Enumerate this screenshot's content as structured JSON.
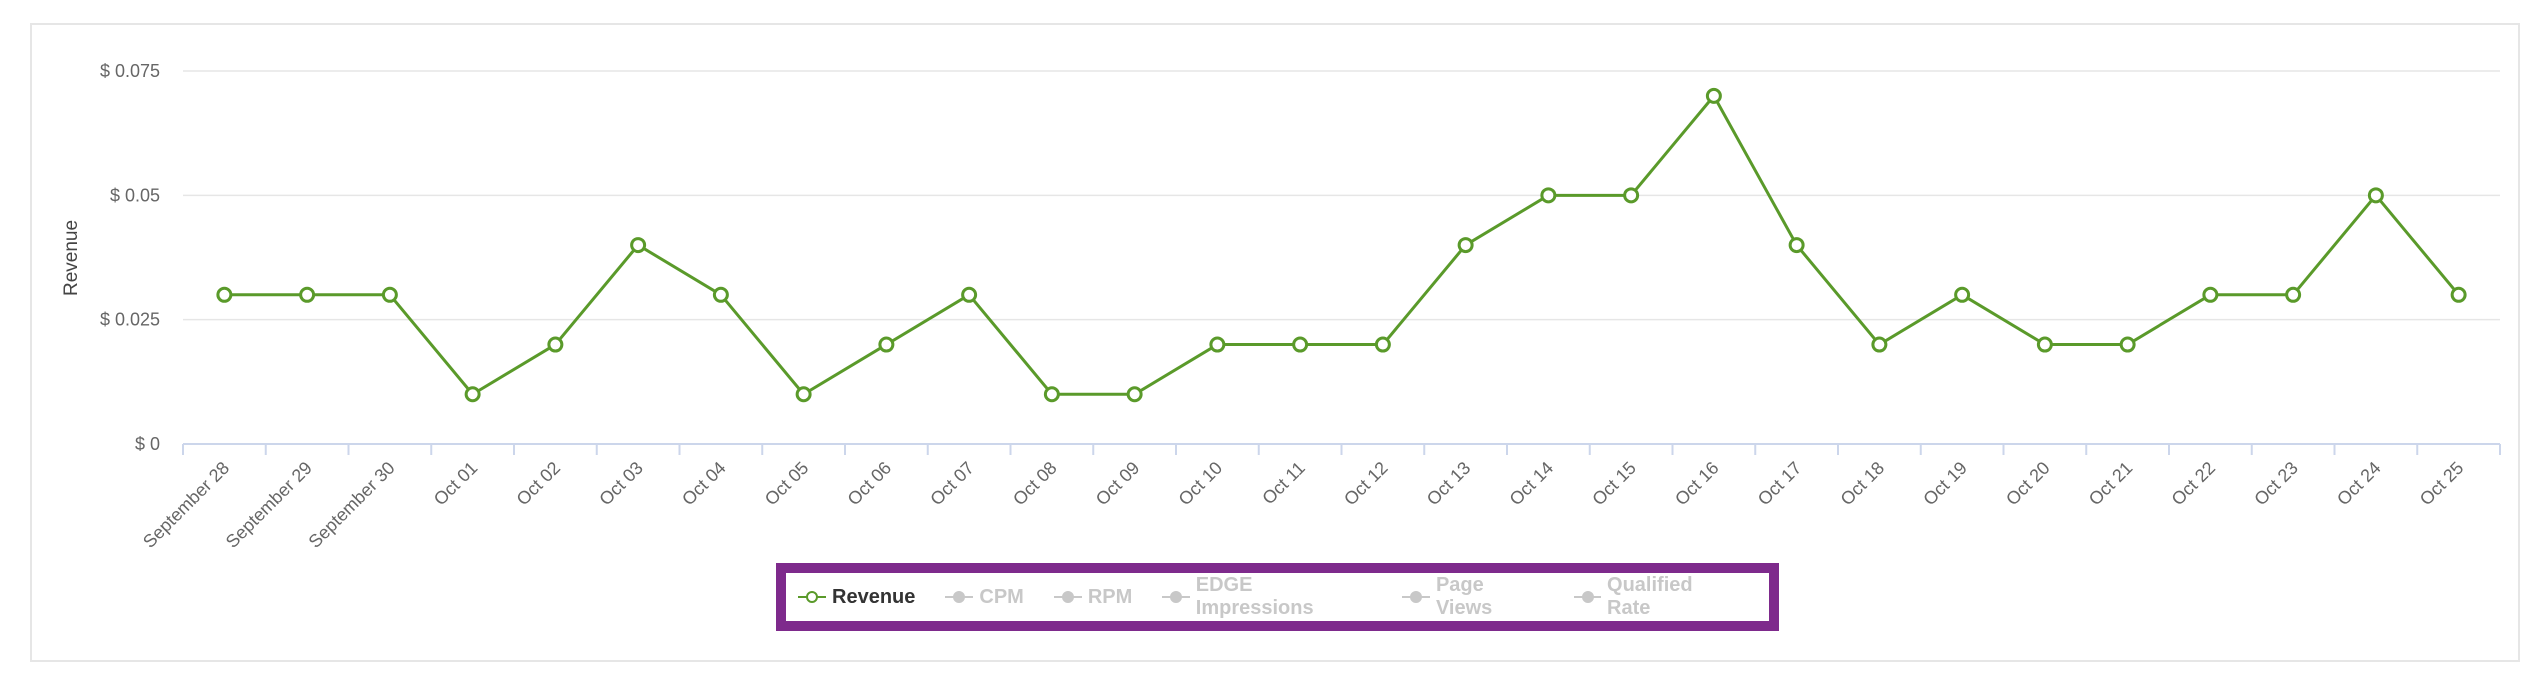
{
  "chart_data": {
    "type": "line",
    "ylabel": "Revenue",
    "ylim": [
      0,
      0.075
    ],
    "yticks": [
      {
        "value": 0,
        "label": "$ 0"
      },
      {
        "value": 0.025,
        "label": "$ 0.025"
      },
      {
        "value": 0.05,
        "label": "$ 0.05"
      },
      {
        "value": 0.075,
        "label": "$ 0.075"
      }
    ],
    "categories": [
      "September 28",
      "September 29",
      "September 30",
      "Oct 01",
      "Oct 02",
      "Oct 03",
      "Oct 04",
      "Oct 05",
      "Oct 06",
      "Oct 07",
      "Oct 08",
      "Oct 09",
      "Oct 10",
      "Oct 11",
      "Oct 12",
      "Oct 13",
      "Oct 14",
      "Oct 15",
      "Oct 16",
      "Oct 17",
      "Oct 18",
      "Oct 19",
      "Oct 20",
      "Oct 21",
      "Oct 22",
      "Oct 23",
      "Oct 24",
      "Oct 25"
    ],
    "series": [
      {
        "name": "Revenue",
        "color": "#5a9a2a",
        "visible": true,
        "values": [
          0.03,
          0.03,
          0.03,
          0.01,
          0.02,
          0.04,
          0.03,
          0.01,
          0.02,
          0.03,
          0.01,
          0.01,
          0.02,
          0.02,
          0.02,
          0.04,
          0.05,
          0.05,
          0.07,
          0.04,
          0.02,
          0.03,
          0.02,
          0.02,
          0.03,
          0.03,
          0.05,
          0.03
        ]
      }
    ],
    "grid": true,
    "legend_position": "bottom-center",
    "legend": [
      {
        "label": "Revenue",
        "active": true
      },
      {
        "label": "CPM",
        "active": false
      },
      {
        "label": "RPM",
        "active": false
      },
      {
        "label": "EDGE Impressions",
        "active": false
      },
      {
        "label": "Page Views",
        "active": false
      },
      {
        "label": "Qualified Rate",
        "active": false
      }
    ]
  },
  "colors": {
    "series": "#5a9a2a",
    "legend_highlight_border": "#7e2a8c",
    "legend_inactive": "#c8c8c8",
    "legend_active_text": "#333333"
  }
}
